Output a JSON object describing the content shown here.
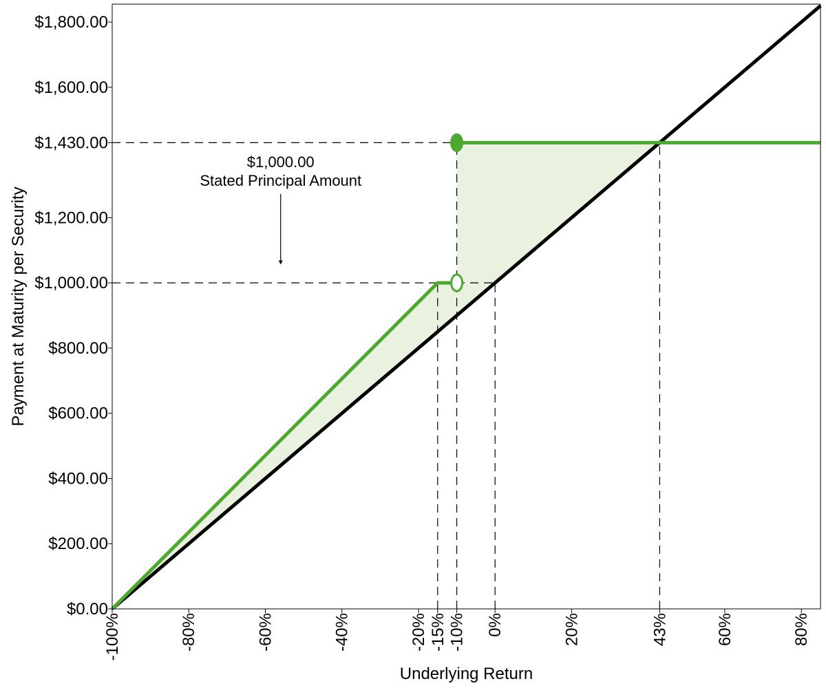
{
  "chart_data": {
    "type": "line",
    "xlabel": "Underlying Return",
    "ylabel": "Payment at Maturity per Security",
    "xlim": [
      -100,
      85
    ],
    "ylim": [
      0,
      1855
    ],
    "x_ticks": [
      {
        "value": -100,
        "label": "-100%"
      },
      {
        "value": -80,
        "label": "-80%"
      },
      {
        "value": -60,
        "label": "-60%"
      },
      {
        "value": -40,
        "label": "-40%"
      },
      {
        "value": -20,
        "label": "-20%"
      },
      {
        "value": -15,
        "label": "-15%"
      },
      {
        "value": -10,
        "label": "-10%"
      },
      {
        "value": 0,
        "label": "0%"
      },
      {
        "value": 20,
        "label": "20%"
      },
      {
        "value": 43,
        "label": "43%"
      },
      {
        "value": 60,
        "label": "60%"
      },
      {
        "value": 80,
        "label": "80%"
      }
    ],
    "y_ticks": [
      {
        "value": 0,
        "label": "$0.00"
      },
      {
        "value": 200,
        "label": "$200.00"
      },
      {
        "value": 400,
        "label": "$400.00"
      },
      {
        "value": 600,
        "label": "$600.00"
      },
      {
        "value": 800,
        "label": "$800.00"
      },
      {
        "value": 1000,
        "label": "$1,000.00"
      },
      {
        "value": 1200,
        "label": "$1,200.00"
      },
      {
        "value": 1430,
        "label": "$1,430.00"
      },
      {
        "value": 1600,
        "label": "$1,600.00"
      },
      {
        "value": 1800,
        "label": "$1,800.00"
      }
    ],
    "series": [
      {
        "color": "#000000",
        "points": [
          [
            -100,
            0
          ],
          [
            85,
            1850
          ]
        ]
      },
      {
        "color": "#4ea72e",
        "segments": [
          [
            [
              -100,
              0
            ],
            [
              -15,
              1000
            ],
            [
              -10,
              1000
            ]
          ],
          [
            [
              -10,
              1430
            ],
            [
              85,
              1430
            ]
          ]
        ],
        "markers": [
          {
            "x": -10,
            "y": 1000,
            "filled": false
          },
          {
            "x": -10,
            "y": 1430,
            "filled": true
          }
        ]
      }
    ],
    "shaded_regions": [
      {
        "color": "#e9f2df",
        "points": [
          [
            -100,
            0
          ],
          [
            -15,
            1000
          ],
          [
            -10,
            1000
          ],
          [
            -10,
            900
          ]
        ]
      },
      {
        "color": "#e9f2df",
        "points": [
          [
            -10,
            900
          ],
          [
            -10,
            1430
          ],
          [
            43,
            1430
          ]
        ]
      }
    ],
    "reference_lines": {
      "horizontal": [
        {
          "y": 1430,
          "x_from": -100,
          "x_to": -10
        },
        {
          "y": 1000,
          "x_from": -100,
          "x_to": 0
        }
      ],
      "vertical": [
        {
          "x": -15,
          "y_from": 0,
          "y_to": 1000
        },
        {
          "x": -10,
          "y_from": 0,
          "y_to": 1430
        },
        {
          "x": 0,
          "y_from": 0,
          "y_to": 1000
        },
        {
          "x": 43,
          "y_from": 0,
          "y_to": 1430
        }
      ]
    },
    "annotation": {
      "line1": "$1,000.00",
      "line2": "Stated Principal Amount",
      "arrow_to": {
        "x": -56,
        "y": 1050
      }
    },
    "grid": false,
    "legend": "none"
  }
}
